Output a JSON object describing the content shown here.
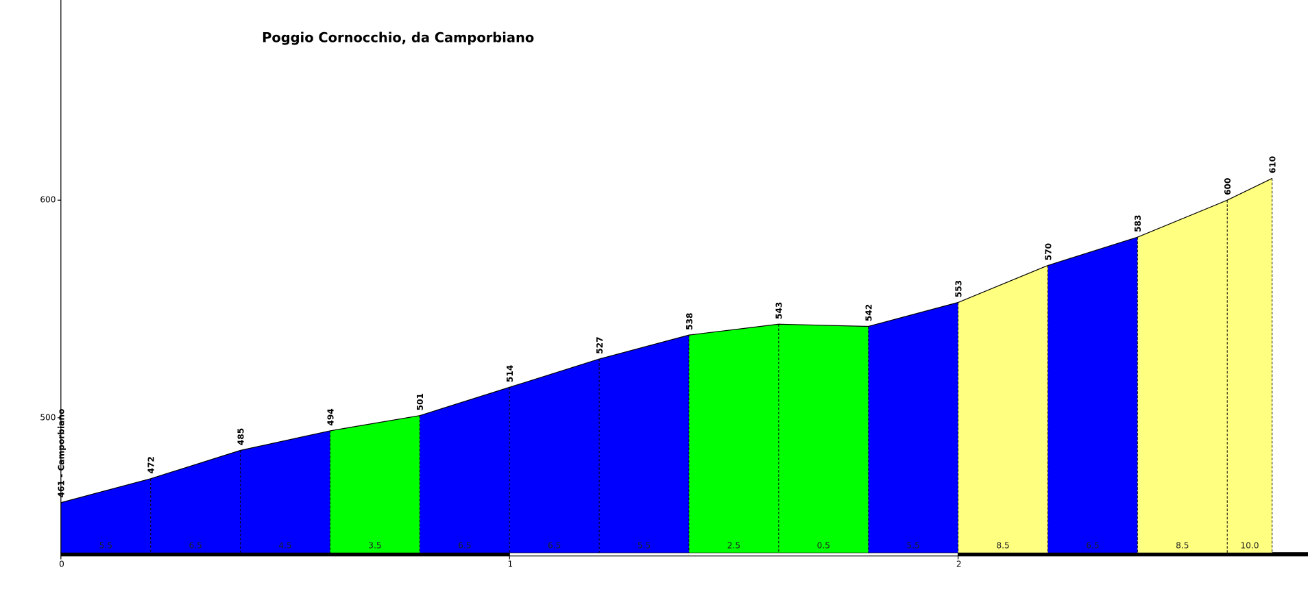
{
  "chart_data": {
    "type": "elevation-profile",
    "title": "Poggio Cornocchio, da Camporbiano",
    "x": [
      0,
      0.2,
      0.4,
      0.6,
      0.8,
      1.0,
      1.2,
      1.4,
      1.6,
      1.8,
      2.0,
      2.2,
      2.4,
      2.6,
      2.7
    ],
    "values": [
      461,
      472,
      485,
      494,
      501,
      514,
      527,
      538,
      543,
      542,
      553,
      570,
      583,
      600,
      610
    ],
    "value_labels": [
      "461 - Camporbiano",
      "472",
      "485",
      "494",
      "501",
      "514",
      "527",
      "538",
      "543",
      "542",
      "553",
      "570",
      "583",
      "600",
      "610"
    ],
    "gradient_labels": [
      "5.5",
      "6.5",
      "4.5",
      "3.5",
      "6.5",
      "6.5",
      "5.5",
      "2.5",
      "0.5",
      "5.5",
      "8.5",
      "6.5",
      "8.5",
      "10.0"
    ],
    "segment_colors": [
      "#0000ff",
      "#0000ff",
      "#0000ff",
      "#00ff00",
      "#0000ff",
      "#0000ff",
      "#0000ff",
      "#00ff00",
      "#00ff00",
      "#0000ff",
      "#ffff80",
      "#0000ff",
      "#ffff80",
      "#ffff80"
    ],
    "xlim": [
      0,
      2.78
    ],
    "xticks": [
      0,
      1,
      2
    ],
    "ylim": [
      438,
      692
    ],
    "yticks": [
      500,
      600
    ]
  }
}
